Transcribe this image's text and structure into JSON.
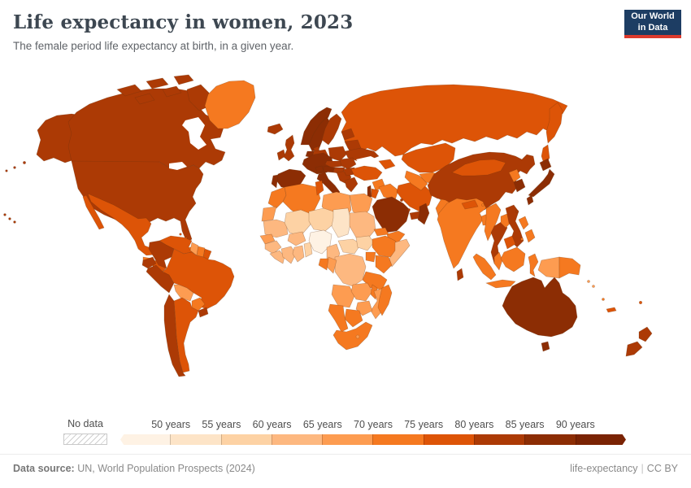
{
  "header": {
    "title": "Life expectancy in women, 2023",
    "subtitle": "The female period life expectancy at birth, in a given year.",
    "logo": {
      "line1": "Our World",
      "line2": "in Data",
      "bg": "#1d3d63",
      "accent": "#dc3a2d"
    }
  },
  "legend": {
    "no_data_label": "No data",
    "labels": [
      "50 years",
      "55 years",
      "60 years",
      "65 years",
      "70 years",
      "75 years",
      "80 years",
      "85 years",
      "90 years"
    ],
    "bins": [
      "#fef2e4",
      "#fde4c7",
      "#fdd2a4",
      "#fdb880",
      "#fd9c51",
      "#f57920",
      "#dd5407",
      "#ac3a05",
      "#8c2d04",
      "#7a2303"
    ]
  },
  "footer": {
    "source_label": "Data source:",
    "source_text": " UN, World Population Prospects (2024)",
    "right_slug": "life-expectancy",
    "right_sep": "|",
    "right_license": "CC BY"
  },
  "map": {
    "ocean": "#ffffff",
    "border_color": "rgba(99,50,16,0.38)",
    "countries": {
      "usa": "#ac3a05",
      "canada": "#ac3a05",
      "greenland": "#f57920",
      "mexico": "#dd5407",
      "guatemala": "#f57920",
      "belize": "#f57920",
      "honduras-nicaragua": "#dd5407",
      "costa-rica-panama": "#ac3a05",
      "cuba": "#dd5407",
      "hispaniola": "#f57920",
      "jamaica": "#dd5407",
      "puerto-rico": "#ac3a05",
      "bahamas": "#dd5407",
      "antilles": "#dd5407",
      "trinidad": "#dd5407",
      "venezuela": "#dd5407",
      "colombia": "#ac3a05",
      "guyana": "#fd9c51",
      "suriname": "#f57920",
      "french-guiana": "#dd5407",
      "ecuador": "#ac3a05",
      "peru": "#ac3a05",
      "brazil": "#dd5407",
      "bolivia": "#fd9c51",
      "paraguay": "#f57920",
      "chile": "#ac3a05",
      "argentina": "#dd5407",
      "uruguay": "#ac3a05",
      "iceland": "#ac3a05",
      "ireland": "#ac3a05",
      "uk": "#ac3a05",
      "norway": "#8c2d04",
      "sweden": "#8c2d04",
      "finland": "#ac3a05",
      "denmark": "#ac3a05",
      "portugal": "#8c2d04",
      "spain": "#8c2d04",
      "france": "#8c2d04",
      "benelux": "#8c2d04",
      "germany": "#ac3a05",
      "poland": "#ac3a05",
      "czech-slovakia": "#ac3a05",
      "switzerland": "#8c2d04",
      "austria": "#8c2d04",
      "hungary": "#ac3a05",
      "italy": "#8c2d04",
      "balkans": "#ac3a05",
      "romania": "#ac3a05",
      "bulgaria": "#ac3a05",
      "greece": "#ac3a05",
      "baltics": "#ac3a05",
      "belarus": "#ac3a05",
      "ukraine": "#ac3a05",
      "russia": "#dd5407",
      "kazakhstan": "#dd5407",
      "uzbekistan": "#f57920",
      "turkmenistan": "#f57920",
      "kyrgyzstan-tajikistan": "#f57920",
      "turkey": "#dd5407",
      "caucasus": "#dd5407",
      "syria": "#f57920",
      "israel": "#8c2d04",
      "jordan": "#dd5407",
      "iraq": "#f57920",
      "iran": "#dd5407",
      "saudi-arabia": "#8c2d04",
      "kuwait": "#ac3a05",
      "qatar": "#ac3a05",
      "uae": "#ac3a05",
      "oman": "#8c2d04",
      "yemen": "#f57920",
      "afghanistan": "#fd9c51",
      "pakistan": "#f57920",
      "morocco": "#f57920",
      "western-sahara": "#fd9c51",
      "algeria": "#f57920",
      "tunisia": "#dd5407",
      "libya": "#fd9c51",
      "egypt": "#fd9c51",
      "mauritania": "#fdb880",
      "mali": "#fdd2a4",
      "niger": "#fdd2a4",
      "chad": "#fde4c7",
      "sudan": "#fdb880",
      "senegal": "#fd9c51",
      "guinea": "#fdb880",
      "sierra-leone-liberia": "#fdb880",
      "cote-divoire": "#fdb880",
      "ghana": "#fdb880",
      "togo-benin": "#fdd2a4",
      "burkina-faso": "#fdb880",
      "nigeria": "#fef2e4",
      "cameroon": "#fdb880",
      "central-african-republic": "#fdd2a4",
      "south-sudan": "#fdd2a4",
      "ethiopia": "#f57920",
      "eritrea": "#f57920",
      "somalia": "#fdb880",
      "uganda": "#f57920",
      "kenya": "#f57920",
      "drc": "#fdb880",
      "congo": "#fd9c51",
      "gabon": "#f57920",
      "tanzania": "#f57920",
      "angola": "#fd9c51",
      "zambia": "#fd9c51",
      "malawi": "#f57920",
      "mozambique": "#fd9c51",
      "zimbabwe": "#fd9c51",
      "botswana": "#f57920",
      "namibia": "#f57920",
      "south-africa": "#f57920",
      "lesotho": "#fd9c51",
      "madagascar": "#f57920",
      "india": "#f57920",
      "nepal": "#dd5407",
      "bhutan": "#f57920",
      "bangladesh": "#f57920",
      "sri-lanka": "#ac3a05",
      "myanmar": "#f57920",
      "thailand": "#ac3a05",
      "laos": "#f57920",
      "vietnam": "#ac3a05",
      "cambodia": "#dd5407",
      "malaysia": "#f57920",
      "indonesia": "#f57920",
      "borneo": "#f57920",
      "west-papua": "#fd9c51",
      "png": "#f57920",
      "philippines": "#f57920",
      "timor": "#fd9c51",
      "china": "#ac3a05",
      "mongolia": "#dd5407",
      "north-korea": "#f57920",
      "south-korea": "#8c2d04",
      "japan": "#8c2d04",
      "taiwan": "#ac3a05",
      "australia": "#8c2d04",
      "tasmania": "#8c2d04",
      "new-zealand": "#ac3a05",
      "new-caledonia": "#dd5407",
      "fiji": "#dd5407",
      "solomon": "#fd9c51",
      "vanuatu": "#f57920"
    }
  },
  "chart_data": {
    "type": "choropleth_map",
    "title": "Life expectancy in women, 2023",
    "subtitle": "The female period life expectancy at birth, in a given year.",
    "unit": "years",
    "legend_position": "bottom",
    "legend_bins": [
      {
        "range": "<50",
        "color": "#fef2e4"
      },
      {
        "range": "50-55",
        "color": "#fde4c7"
      },
      {
        "range": "55-60",
        "color": "#fdd2a4"
      },
      {
        "range": "60-65",
        "color": "#fdb880"
      },
      {
        "range": "65-70",
        "color": "#fd9c51"
      },
      {
        "range": "70-75",
        "color": "#f57920"
      },
      {
        "range": "75-80",
        "color": "#dd5407"
      },
      {
        "range": "80-85",
        "color": "#ac3a05"
      },
      {
        "range": "85-90",
        "color": "#8c2d04"
      },
      {
        "range": ">90",
        "color": "#7a2303"
      }
    ],
    "countries_by_bin": {
      "<50": [
        "Nigeria"
      ],
      "50-55": [
        "Chad"
      ],
      "55-60": [
        "Mali",
        "Niger",
        "Central African Republic",
        "South Sudan",
        "Benin",
        "Togo"
      ],
      "60-65": [
        "Mauritania",
        "Guinea",
        "Sierra Leone",
        "Liberia",
        "Cote d'Ivoire",
        "Ghana",
        "Burkina Faso",
        "Cameroon",
        "DR Congo",
        "Somalia",
        "Afghanistan"
      ],
      "65-70": [
        "Western Sahara",
        "Libya",
        "Egypt",
        "Senegal",
        "Congo",
        "Angola",
        "Zambia",
        "Zimbabwe",
        "Mozambique",
        "Lesotho",
        "Bolivia",
        "Guyana",
        "Timor",
        "West Papua"
      ],
      "70-75": [
        "Morocco",
        "Algeria",
        "Ethiopia",
        "Eritrea",
        "Uganda",
        "Kenya",
        "Tanzania",
        "Malawi",
        "Botswana",
        "Namibia",
        "South Africa",
        "Madagascar",
        "Greenland",
        "Guatemala",
        "Suriname",
        "Paraguay",
        "Syria",
        "Iraq",
        "Yemen",
        "Pakistan",
        "India",
        "Bangladesh",
        "Myanmar",
        "Laos",
        "Malaysia",
        "Indonesia",
        "Philippines",
        "Papua New Guinea",
        "North Korea",
        "Uzbekistan",
        "Turkmenistan"
      ],
      "75-80": [
        "Mexico",
        "Honduras",
        "Nicaragua",
        "Cuba",
        "Venezuela",
        "Brazil",
        "Argentina",
        "Russia",
        "Kazakhstan",
        "Mongolia",
        "Turkey",
        "Iran",
        "Jordan",
        "Tunisia",
        "Cambodia",
        "Nepal",
        "Fiji",
        "New Caledonia"
      ],
      "80-85": [
        "United States",
        "Canada",
        "United Kingdom",
        "Ireland",
        "Iceland",
        "Germany",
        "Poland",
        "Ukraine",
        "Belarus",
        "Romania",
        "Bulgaria",
        "Greece",
        "Finland",
        "Denmark",
        "Colombia",
        "Ecuador",
        "Peru",
        "Chile",
        "Uruguay",
        "Costa Rica",
        "Panama",
        "China",
        "Taiwan",
        "Sri Lanka",
        "Thailand",
        "Vietnam",
        "New Zealand",
        "UAE",
        "Kuwait",
        "Qatar"
      ],
      "85-90": [
        "Spain",
        "Portugal",
        "France",
        "Italy",
        "Switzerland",
        "Austria",
        "Norway",
        "Sweden",
        "Japan",
        "South Korea",
        "Australia",
        "Israel",
        "Saudi Arabia",
        "Oman"
      ]
    }
  }
}
